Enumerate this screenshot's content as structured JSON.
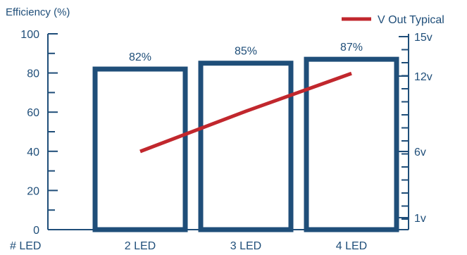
{
  "chart_data": {
    "type": "bar",
    "title": "",
    "ylabel": "Efficiency (%)",
    "xlabel": "# LED",
    "categories": [
      "2 LED",
      "3 LED",
      "4 LED"
    ],
    "series": [
      {
        "name": "",
        "kind": "bar",
        "values": [
          82,
          85,
          87
        ],
        "value_labels": [
          "82%",
          "85%",
          "87%"
        ],
        "color": "#1f4e79"
      },
      {
        "name": "V Out Typical",
        "kind": "line",
        "axis": "right",
        "values": [
          6,
          9.2,
          12.2
        ],
        "color": "#c1272d"
      }
    ],
    "ylim": [
      0,
      100
    ],
    "yticks": [
      "0",
      "20",
      "40",
      "60",
      "80",
      "100"
    ],
    "y2ticks": [
      "1v",
      "6v",
      "12v",
      "15v"
    ],
    "legend": "top-right",
    "grid": false
  }
}
